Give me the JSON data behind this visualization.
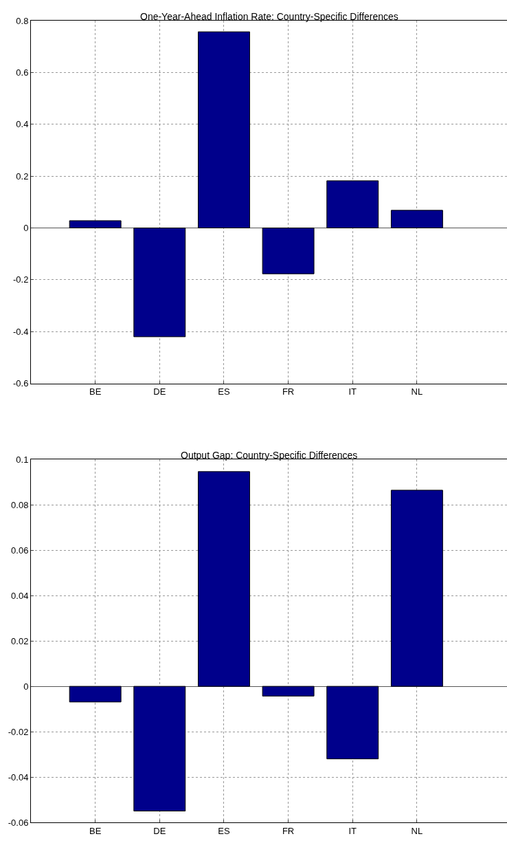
{
  "chart_data": [
    {
      "type": "bar",
      "title": "One-Year-Ahead Inflation Rate: Country-Specific Differences",
      "categories": [
        "BE",
        "DE",
        "ES",
        "FR",
        "IT",
        "NL"
      ],
      "values": [
        0.028,
        -0.42,
        0.757,
        -0.177,
        0.182,
        0.068
      ],
      "color": "#00008b",
      "ylim": [
        -0.6,
        0.8
      ],
      "yticks": [
        -0.6,
        -0.4,
        -0.2,
        0,
        0.2,
        0.4,
        0.6,
        0.8
      ],
      "grid": true
    },
    {
      "type": "bar",
      "title": "Output Gap: Country-Specific Differences",
      "categories": [
        "BE",
        "DE",
        "ES",
        "FR",
        "IT",
        "NL"
      ],
      "values": [
        -0.0069,
        -0.055,
        0.0947,
        -0.0043,
        -0.032,
        0.0865
      ],
      "color": "#00008b",
      "ylim": [
        -0.06,
        0.1
      ],
      "yticks": [
        -0.06,
        -0.04,
        -0.02,
        0,
        0.02,
        0.04,
        0.06,
        0.08,
        0.1
      ],
      "grid": true
    }
  ]
}
